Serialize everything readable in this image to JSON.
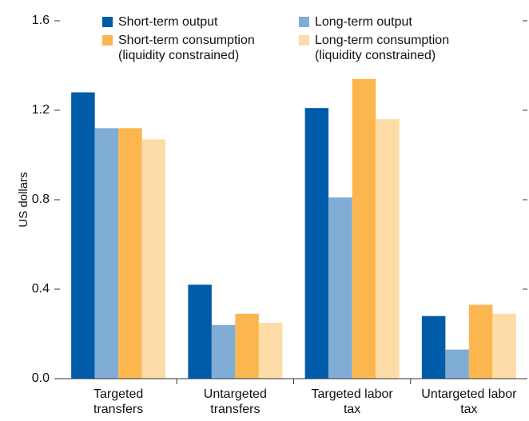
{
  "chart_data": {
    "type": "bar",
    "y_label": "US dollars",
    "categories": [
      "Targeted transfers",
      "Untargeted transfers",
      "Targeted labor tax",
      "Untargeted labor tax"
    ],
    "series": [
      {
        "name": "Short-term output",
        "color": "#005ba9",
        "values": [
          1.28,
          0.42,
          1.21,
          0.28
        ]
      },
      {
        "name": "Long-term output",
        "color": "#7fadd6",
        "values": [
          1.12,
          0.24,
          0.81,
          0.13
        ]
      },
      {
        "name": "Short-term consumption (liquidity constrained)",
        "color": "#fbb64f",
        "values": [
          1.12,
          0.29,
          1.34,
          0.33
        ]
      },
      {
        "name": "Long-term consumption (liquidity constrained)",
        "color": "#fddca8",
        "values": [
          1.07,
          0.25,
          1.16,
          0.29
        ]
      }
    ],
    "ylim": [
      0,
      1.6
    ],
    "yticks": [
      {
        "value": 0,
        "label": "0.0"
      },
      0.4,
      0.8,
      1.2,
      1.6
    ]
  }
}
